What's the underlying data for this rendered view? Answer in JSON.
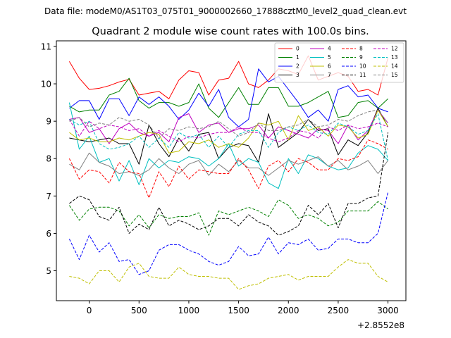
{
  "chart_data": {
    "type": "line",
    "suptitle": "Data file: modeM0/AS1T03_075T01_9000002660_17888cztM0_level2_quad_clean.evt",
    "title": "Quadrant 2 module wise count rates with 100.0s bins.",
    "xlabel": "",
    "ylabel": "",
    "x_offset_label": "+2.8552e8",
    "xlim": [
      -330,
      3180
    ],
    "ylim": [
      4.2,
      11.15
    ],
    "x_ticks": [
      0,
      500,
      1000,
      1500,
      2000,
      2500,
      3000
    ],
    "y_ticks": [
      5,
      6,
      7,
      8,
      9,
      10,
      11
    ],
    "x": [
      -200,
      -100,
      0,
      100,
      200,
      300,
      400,
      500,
      600,
      700,
      800,
      900,
      1000,
      1100,
      1200,
      1300,
      1400,
      1500,
      1600,
      1700,
      1800,
      1900,
      2000,
      2100,
      2200,
      2300,
      2400,
      2500,
      2600,
      2700,
      2800,
      2900,
      3000
    ],
    "legend_position": "upper-right",
    "series": [
      {
        "name": "0",
        "color": "#ff0000",
        "dash": "solid",
        "values": [
          10.6,
          10.15,
          9.85,
          9.88,
          9.95,
          10.05,
          10.12,
          9.7,
          9.75,
          9.8,
          9.6,
          10.1,
          10.35,
          10.3,
          9.7,
          10.1,
          10.15,
          10.6,
          10.0,
          9.9,
          10.1,
          10.4,
          10.35,
          10.25,
          10.75,
          10.1,
          10.2,
          10.3,
          10.2,
          9.8,
          9.85,
          9.7,
          10.7
        ]
      },
      {
        "name": "1",
        "color": "#008000",
        "dash": "solid",
        "values": [
          9.4,
          9.25,
          9.3,
          9.3,
          9.7,
          9.8,
          10.15,
          9.55,
          9.35,
          9.5,
          9.5,
          9.4,
          9.5,
          10.0,
          9.35,
          9.1,
          9.5,
          9.9,
          9.45,
          9.45,
          9.9,
          9.9,
          9.4,
          9.4,
          9.5,
          9.65,
          9.8,
          9.1,
          9.15,
          9.5,
          9.55,
          9.35,
          9.6
        ]
      },
      {
        "name": "2",
        "color": "#0000ff",
        "dash": "solid",
        "values": [
          9.35,
          9.55,
          9.55,
          9.05,
          9.6,
          9.6,
          9.15,
          9.65,
          9.45,
          9.65,
          9.4,
          9.05,
          9.3,
          9.75,
          9.4,
          9.85,
          9.1,
          8.85,
          9.05,
          10.4,
          10.05,
          10.2,
          9.85,
          9.5,
          9.1,
          9.3,
          9.0,
          9.85,
          9.95,
          9.65,
          9.7,
          9.35,
          9.25
        ]
      },
      {
        "name": "3",
        "color": "#000000",
        "dash": "solid",
        "values": [
          8.55,
          8.5,
          8.45,
          8.5,
          8.55,
          8.4,
          8.4,
          7.85,
          8.9,
          8.4,
          8.05,
          8.55,
          8.2,
          8.65,
          8.7,
          8.0,
          8.3,
          8.4,
          8.35,
          7.9,
          9.2,
          8.3,
          8.5,
          8.7,
          9.05,
          8.75,
          8.8,
          8.1,
          8.5,
          8.35,
          8.7,
          9.35,
          8.85
        ]
      },
      {
        "name": "4",
        "color": "#bf00bf",
        "dash": "solid",
        "values": [
          9.05,
          9.1,
          8.7,
          8.8,
          8.4,
          8.8,
          8.95,
          8.7,
          8.6,
          8.7,
          8.45,
          9.1,
          9.2,
          8.7,
          8.9,
          8.95,
          8.7,
          8.8,
          8.8,
          8.9,
          8.55,
          8.85,
          8.75,
          8.65,
          8.55,
          8.8,
          8.75,
          8.4,
          8.9,
          8.5,
          8.75,
          9.3,
          8.95
        ]
      },
      {
        "name": "5",
        "color": "#00bfbf",
        "dash": "solid",
        "values": [
          9.5,
          8.25,
          8.6,
          7.9,
          8.0,
          7.4,
          7.95,
          7.3,
          8.0,
          7.75,
          7.95,
          7.9,
          8.05,
          8.0,
          7.8,
          8.0,
          8.4,
          7.8,
          8.0,
          7.9,
          7.35,
          7.2,
          8.0,
          7.6,
          8.1,
          8.0,
          7.8,
          7.7,
          7.75,
          8.15,
          8.35,
          8.25,
          7.95
        ]
      },
      {
        "name": "6",
        "color": "#bfbf00",
        "dash": "solid",
        "values": [
          8.7,
          8.5,
          8.55,
          8.45,
          8.45,
          8.55,
          8.5,
          8.6,
          8.7,
          8.65,
          8.15,
          8.2,
          8.45,
          8.4,
          8.5,
          8.3,
          8.4,
          8.3,
          8.55,
          8.95,
          8.9,
          9.0,
          8.5,
          9.15,
          8.75,
          8.85,
          8.6,
          8.9,
          8.85,
          8.55,
          8.65,
          9.3,
          8.85
        ]
      },
      {
        "name": "7",
        "color": "#808080",
        "dash": "solid",
        "values": [
          7.85,
          7.7,
          8.15,
          7.9,
          7.8,
          7.6,
          7.65,
          7.55,
          7.7,
          8.0,
          7.75,
          7.6,
          7.85,
          7.95,
          7.55,
          7.85,
          7.65,
          7.95,
          7.75,
          7.75,
          7.55,
          7.75,
          7.95,
          7.85,
          7.95,
          8.05,
          7.8,
          7.95,
          7.7,
          7.8,
          7.95,
          7.6,
          7.95
        ]
      },
      {
        "name": "8",
        "color": "#ff0000",
        "dash": "dashed",
        "values": [
          8.0,
          7.45,
          7.7,
          7.65,
          7.35,
          7.9,
          7.65,
          7.6,
          6.95,
          7.65,
          7.25,
          7.8,
          7.45,
          7.7,
          7.65,
          7.6,
          7.6,
          8.0,
          7.7,
          7.2,
          7.8,
          7.95,
          7.65,
          8.0,
          7.9,
          7.7,
          7.7,
          8.0,
          7.95,
          8.05,
          8.5,
          8.4,
          8.25
        ]
      },
      {
        "name": "9",
        "color": "#008000",
        "dash": "dashed",
        "values": [
          6.75,
          6.35,
          6.65,
          6.7,
          6.7,
          6.6,
          6.2,
          6.5,
          6.15,
          6.5,
          6.4,
          6.45,
          6.45,
          6.55,
          5.95,
          6.6,
          6.5,
          6.6,
          6.7,
          6.6,
          6.45,
          6.9,
          6.75,
          6.4,
          6.5,
          6.4,
          6.2,
          6.3,
          6.6,
          6.6,
          6.6,
          6.85,
          6.65
        ]
      },
      {
        "name": "10",
        "color": "#0000ff",
        "dash": "dashed",
        "values": [
          5.85,
          5.3,
          5.95,
          5.5,
          5.75,
          5.25,
          5.3,
          4.9,
          5.0,
          5.55,
          5.7,
          5.7,
          5.55,
          5.45,
          5.25,
          5.15,
          5.25,
          5.65,
          5.4,
          5.45,
          5.9,
          5.45,
          5.75,
          5.7,
          5.85,
          5.55,
          5.6,
          5.85,
          5.85,
          5.75,
          5.75,
          6.0,
          7.1
        ]
      },
      {
        "name": "11",
        "color": "#000000",
        "dash": "dashed",
        "values": [
          6.8,
          7.0,
          6.9,
          6.45,
          6.35,
          6.7,
          6.0,
          6.25,
          6.1,
          6.7,
          6.2,
          6.35,
          6.25,
          6.1,
          6.2,
          6.4,
          6.4,
          6.2,
          6.5,
          6.3,
          6.2,
          5.95,
          6.05,
          6.2,
          6.75,
          6.5,
          6.8,
          6.15,
          6.8,
          6.8,
          6.95,
          7.0,
          8.7
        ]
      },
      {
        "name": "12",
        "color": "#bf00bf",
        "dash": "dashed",
        "values": [
          9.05,
          8.6,
          9.0,
          8.8,
          8.9,
          8.85,
          8.75,
          8.8,
          8.6,
          8.75,
          8.6,
          8.45,
          8.6,
          8.55,
          8.65,
          8.7,
          8.7,
          8.85,
          8.7,
          8.7,
          8.55,
          8.45,
          8.55,
          8.75,
          8.7,
          8.55,
          8.85,
          8.75,
          8.9,
          8.8,
          8.85,
          8.95,
          8.85
        ]
      },
      {
        "name": "13",
        "color": "#00bfbf",
        "dash": "dashed",
        "values": [
          9.05,
          8.9,
          9.0,
          8.4,
          8.25,
          8.3,
          8.4,
          8.6,
          8.3,
          8.55,
          8.3,
          8.7,
          8.55,
          8.65,
          8.3,
          8.6,
          8.3,
          8.65,
          8.75,
          8.75,
          8.3,
          8.7,
          8.85,
          8.75,
          8.9,
          8.7,
          8.65,
          8.95,
          8.85,
          8.65,
          8.75,
          9.2,
          7.95
        ]
      },
      {
        "name": "14",
        "color": "#bfbf00",
        "dash": "dashed",
        "values": [
          4.85,
          4.8,
          4.65,
          5.0,
          5.0,
          4.7,
          5.1,
          5.2,
          4.85,
          4.8,
          4.8,
          5.1,
          4.9,
          4.85,
          4.85,
          4.8,
          4.8,
          4.5,
          4.6,
          4.65,
          4.8,
          4.85,
          4.9,
          4.75,
          4.85,
          4.85,
          4.85,
          5.1,
          5.3,
          5.2,
          5.2,
          4.85,
          4.7
        ]
      },
      {
        "name": "15",
        "color": "#808080",
        "dash": "dashed",
        "values": [
          9.0,
          9.1,
          8.85,
          8.95,
          8.9,
          9.1,
          9.0,
          9.05,
          8.9,
          8.55,
          8.8,
          8.75,
          8.85,
          8.8,
          8.85,
          9.0,
          8.8,
          8.6,
          8.7,
          8.95,
          8.75,
          8.75,
          8.85,
          8.9,
          9.05,
          8.85,
          8.9,
          9.05,
          9.0,
          9.15,
          9.25,
          9.3,
          8.95
        ]
      }
    ]
  }
}
